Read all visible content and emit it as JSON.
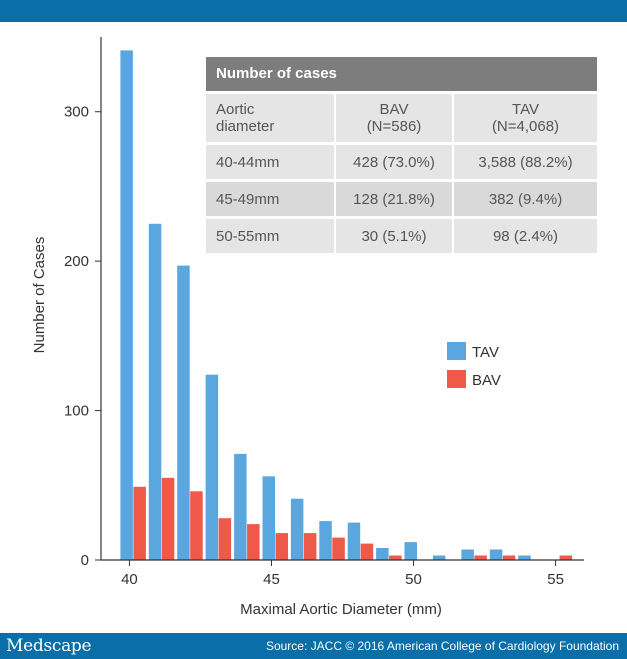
{
  "colors": {
    "bar_band": "#0a6ea8",
    "tav": "#5aa7e0",
    "bav": "#ef5a48"
  },
  "footer": {
    "brand": "Medscape",
    "source": "Source: JACC © 2016 American College of Cardiology Foundation"
  },
  "chart_data": {
    "type": "bar",
    "xlabel": "Maximal Aortic Diameter (mm)",
    "ylabel": "Number of Cases",
    "xlim": [
      39,
      56
    ],
    "ylim": [
      0,
      350
    ],
    "x_ticks": [
      40,
      45,
      50,
      55
    ],
    "y_ticks": [
      0,
      100,
      200,
      300
    ],
    "legend": {
      "placement": "right-middle",
      "entries": [
        "TAV",
        "BAV"
      ]
    },
    "categories": [
      40,
      41,
      42,
      43,
      44,
      45,
      46,
      47,
      48,
      49,
      50,
      51,
      52,
      53,
      54,
      55
    ],
    "series": [
      {
        "name": "TAV",
        "values": [
          341,
          225,
          197,
          124,
          71,
          56,
          41,
          26,
          25,
          8,
          12,
          3,
          7,
          7,
          3,
          0
        ]
      },
      {
        "name": "BAV",
        "values": [
          49,
          55,
          46,
          28,
          24,
          18,
          18,
          15,
          11,
          3,
          0,
          0,
          3,
          3,
          0,
          3
        ]
      }
    ]
  },
  "inset_table": {
    "title": "Number of cases",
    "header": {
      "col1": [
        "Aortic",
        "diameter"
      ],
      "col2": [
        "BAV",
        "(N=586)"
      ],
      "col3": [
        "TAV",
        "(N=4,068)"
      ]
    },
    "rows": [
      {
        "range": "40-44mm",
        "bav": "428 (73.0%)",
        "tav": "3,588 (88.2%)"
      },
      {
        "range": "45-49mm",
        "bav": "128 (21.8%)",
        "tav": "382 (9.4%)"
      },
      {
        "range": "50-55mm",
        "bav": "30 (5.1%)",
        "tav": "98 (2.4%)"
      }
    ]
  }
}
